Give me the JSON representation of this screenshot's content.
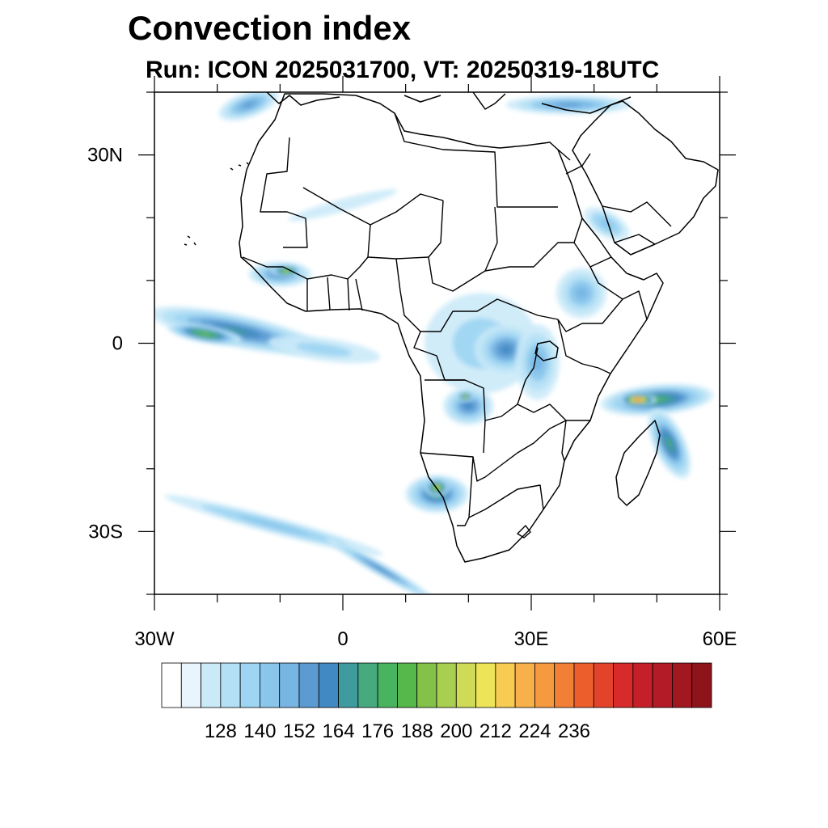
{
  "title": "Convection index",
  "subtitle": "Run: ICON 2025031700,  VT: 20250319-18UTC",
  "map": {
    "lon_range": [
      -30,
      60
    ],
    "lat_range": [
      -40,
      40
    ],
    "lat_ticks": [
      {
        "value": 30,
        "label": "30N"
      },
      {
        "value": 0,
        "label": "0"
      },
      {
        "value": -30,
        "label": "30S"
      }
    ],
    "lon_ticks": [
      {
        "value": -30,
        "label": "30W"
      },
      {
        "value": 0,
        "label": "0"
      },
      {
        "value": 30,
        "label": "30E"
      },
      {
        "value": 60,
        "label": "60E"
      }
    ],
    "minor_tick_step": 10
  },
  "colorbar": {
    "colors": [
      "#ffffff",
      "#e8f5fc",
      "#cbeaf8",
      "#b4e0f5",
      "#9dd5f3",
      "#8ac6ec",
      "#77b5e3",
      "#5b9bd1",
      "#4189c2",
      "#3f9b9e",
      "#47a97e",
      "#48b460",
      "#56b84a",
      "#83c148",
      "#a9cf50",
      "#cfdb57",
      "#ede45a",
      "#f8cb52",
      "#f7b04a",
      "#f69a40",
      "#f27f36",
      "#ec5f2d",
      "#e2432a",
      "#d62a2b",
      "#c5202a",
      "#b31b26",
      "#a11821",
      "#8e141c"
    ],
    "labels": [
      "128",
      "140",
      "152",
      "164",
      "176",
      "188",
      "200",
      "212",
      "224",
      "236"
    ],
    "label_every": 2,
    "first_label_boundary": 3
  },
  "convection_areas": [
    {
      "name": "atlantic-equatorial-band",
      "lon": -17,
      "lat": 2,
      "rx": 14,
      "ry": 2.6,
      "rot": 12,
      "level": 9
    },
    {
      "name": "atlantic-equatorial-core",
      "lon": -22,
      "lat": 1.5,
      "rx": 6,
      "ry": 1.4,
      "rot": 10,
      "level": 13
    },
    {
      "name": "gulf-guinea-band",
      "lon": -3,
      "lat": -1,
      "rx": 9,
      "ry": 1.8,
      "rot": 8,
      "level": 4
    },
    {
      "name": "west-africa-coast",
      "lon": -10,
      "lat": 11,
      "rx": 5,
      "ry": 2,
      "rot": 0,
      "level": 8
    },
    {
      "name": "west-africa-core",
      "lon": -9,
      "lat": 11.5,
      "rx": 2.5,
      "ry": 1,
      "rot": 0,
      "level": 15
    },
    {
      "name": "congo-basin",
      "lon": 22,
      "lat": 0,
      "rx": 9,
      "ry": 8,
      "rot": 0,
      "level": 4
    },
    {
      "name": "congo-east",
      "lon": 26,
      "lat": -1,
      "rx": 5,
      "ry": 4,
      "rot": 0,
      "level": 8
    },
    {
      "name": "angola-zone",
      "lon": 20,
      "lat": -10,
      "rx": 4,
      "ry": 3,
      "rot": 0,
      "level": 8
    },
    {
      "name": "angola-core",
      "lon": 19.5,
      "lat": -8.5,
      "rx": 1.3,
      "ry": 0.8,
      "rot": 0,
      "level": 16
    },
    {
      "name": "namibia-zone",
      "lon": 15,
      "lat": -24,
      "rx": 5,
      "ry": 3,
      "rot": 0,
      "level": 10
    },
    {
      "name": "namibia-core",
      "lon": 15,
      "lat": -23,
      "rx": 2,
      "ry": 1.5,
      "rot": 0,
      "level": 16
    },
    {
      "name": "east-africa-lakes",
      "lon": 31,
      "lat": -3,
      "rx": 3.5,
      "ry": 6,
      "rot": 0,
      "level": 6
    },
    {
      "name": "ethiopia-highlands",
      "lon": 38,
      "lat": 8,
      "rx": 4,
      "ry": 4,
      "rot": 0,
      "level": 6
    },
    {
      "name": "mozambique-channel",
      "lon": 50,
      "lat": -9,
      "rx": 9,
      "ry": 2.4,
      "rot": -5,
      "level": 11
    },
    {
      "name": "mozambique-core",
      "lon": 47,
      "lat": -9,
      "rx": 3,
      "ry": 1.1,
      "rot": 0,
      "level": 22
    },
    {
      "name": "madagascar-east-band",
      "lon": 52,
      "lat": -16,
      "rx": 2.5,
      "ry": 6,
      "rot": -25,
      "level": 10
    },
    {
      "name": "southern-atlantic-front",
      "lon": -11,
      "lat": -29,
      "rx": 18,
      "ry": 1.3,
      "rot": 15,
      "level": 5
    },
    {
      "name": "southern-front-east",
      "lon": 6,
      "lat": -36,
      "rx": 10,
      "ry": 1,
      "rot": 30,
      "level": 8
    },
    {
      "name": "north-atlantic-cloud",
      "lon": -15,
      "lat": 38,
      "rx": 5,
      "ry": 2,
      "rot": -20,
      "level": 7
    },
    {
      "name": "mediterranean-cloud",
      "lon": 36,
      "lat": 38,
      "rx": 10,
      "ry": 1.5,
      "rot": 0,
      "level": 7
    },
    {
      "name": "sahara-streak",
      "lon": 0,
      "lat": 22,
      "rx": 9,
      "ry": 1,
      "rot": -15,
      "level": 3
    },
    {
      "name": "arabia-cloud",
      "lon": 42,
      "lat": 19,
      "rx": 4,
      "ry": 2,
      "rot": 30,
      "level": 5
    }
  ]
}
